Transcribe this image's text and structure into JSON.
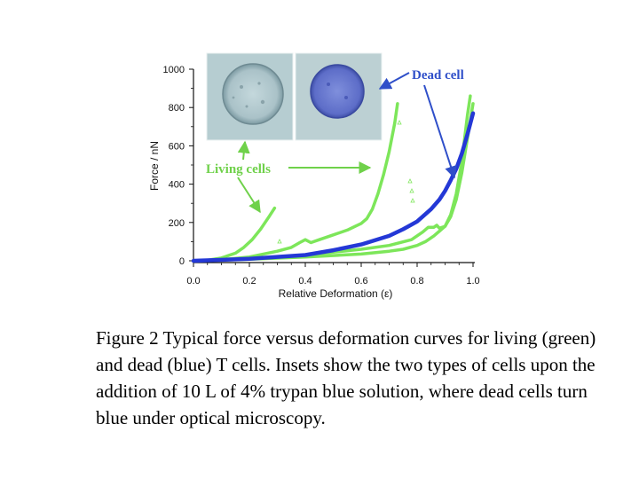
{
  "chart_data": {
    "type": "line",
    "xlabel": "Relative Deformation (ε)",
    "ylabel": "Force / nN",
    "xlim": [
      0,
      1.0
    ],
    "ylim": [
      0,
      1000
    ],
    "x_ticks": [
      "0.0",
      "0.2",
      "0.4",
      "0.6",
      "0.8",
      "1.0"
    ],
    "y_ticks": [
      "0",
      "200",
      "400",
      "600",
      "800",
      "1000"
    ],
    "grid": false,
    "colors": {
      "living": "#7de65a",
      "dead": "#2438d6"
    },
    "series": [
      {
        "group": "living",
        "x": [
          0.0,
          0.05,
          0.1,
          0.15,
          0.18,
          0.21,
          0.24,
          0.27,
          0.29
        ],
        "y": [
          0,
          3,
          15,
          40,
          70,
          110,
          165,
          230,
          275
        ]
      },
      {
        "group": "living",
        "x": [
          0.0,
          0.1,
          0.2,
          0.3,
          0.35,
          0.38,
          0.4,
          0.42,
          0.45,
          0.5,
          0.55,
          0.6,
          0.62,
          0.64,
          0.66,
          0.68,
          0.7,
          0.72,
          0.73
        ],
        "y": [
          0,
          5,
          20,
          50,
          70,
          95,
          110,
          95,
          110,
          135,
          160,
          195,
          220,
          270,
          350,
          450,
          570,
          720,
          820
        ]
      },
      {
        "group": "living",
        "x": [
          0.0,
          0.2,
          0.4,
          0.6,
          0.7,
          0.78,
          0.82,
          0.84,
          0.86,
          0.87,
          0.88,
          0.9,
          0.92,
          0.94,
          0.96,
          0.98,
          0.99
        ],
        "y": [
          0,
          10,
          30,
          60,
          80,
          110,
          150,
          175,
          175,
          185,
          170,
          180,
          240,
          350,
          520,
          760,
          860
        ]
      },
      {
        "group": "living",
        "x": [
          0.0,
          0.2,
          0.4,
          0.6,
          0.7,
          0.75,
          0.8,
          0.83,
          0.86,
          0.88,
          0.9,
          0.92,
          0.94,
          0.96,
          0.98,
          1.0
        ],
        "y": [
          0,
          8,
          20,
          35,
          50,
          60,
          80,
          100,
          130,
          155,
          180,
          230,
          320,
          460,
          640,
          820
        ]
      },
      {
        "group": "dead",
        "x": [
          0.0,
          0.2,
          0.4,
          0.5,
          0.6,
          0.7,
          0.75,
          0.8,
          0.85,
          0.88,
          0.9,
          0.92,
          0.94,
          0.96,
          0.98,
          1.0
        ],
        "y": [
          0,
          10,
          30,
          55,
          85,
          130,
          165,
          205,
          270,
          320,
          365,
          420,
          480,
          560,
          660,
          770
        ]
      }
    ]
  },
  "annotations": {
    "dead_label": "Dead cell",
    "living_label": "Living cells",
    "insets": [
      "living-cell-micrograph",
      "dead-cell-micrograph"
    ]
  },
  "caption": "Figure 2 Typical force versus deformation curves for living (green) and dead (blue) T cells. Insets show the two types of cells upon the addition of 10   L of 4% trypan blue solution, where dead cells turn blue under optical microscopy."
}
